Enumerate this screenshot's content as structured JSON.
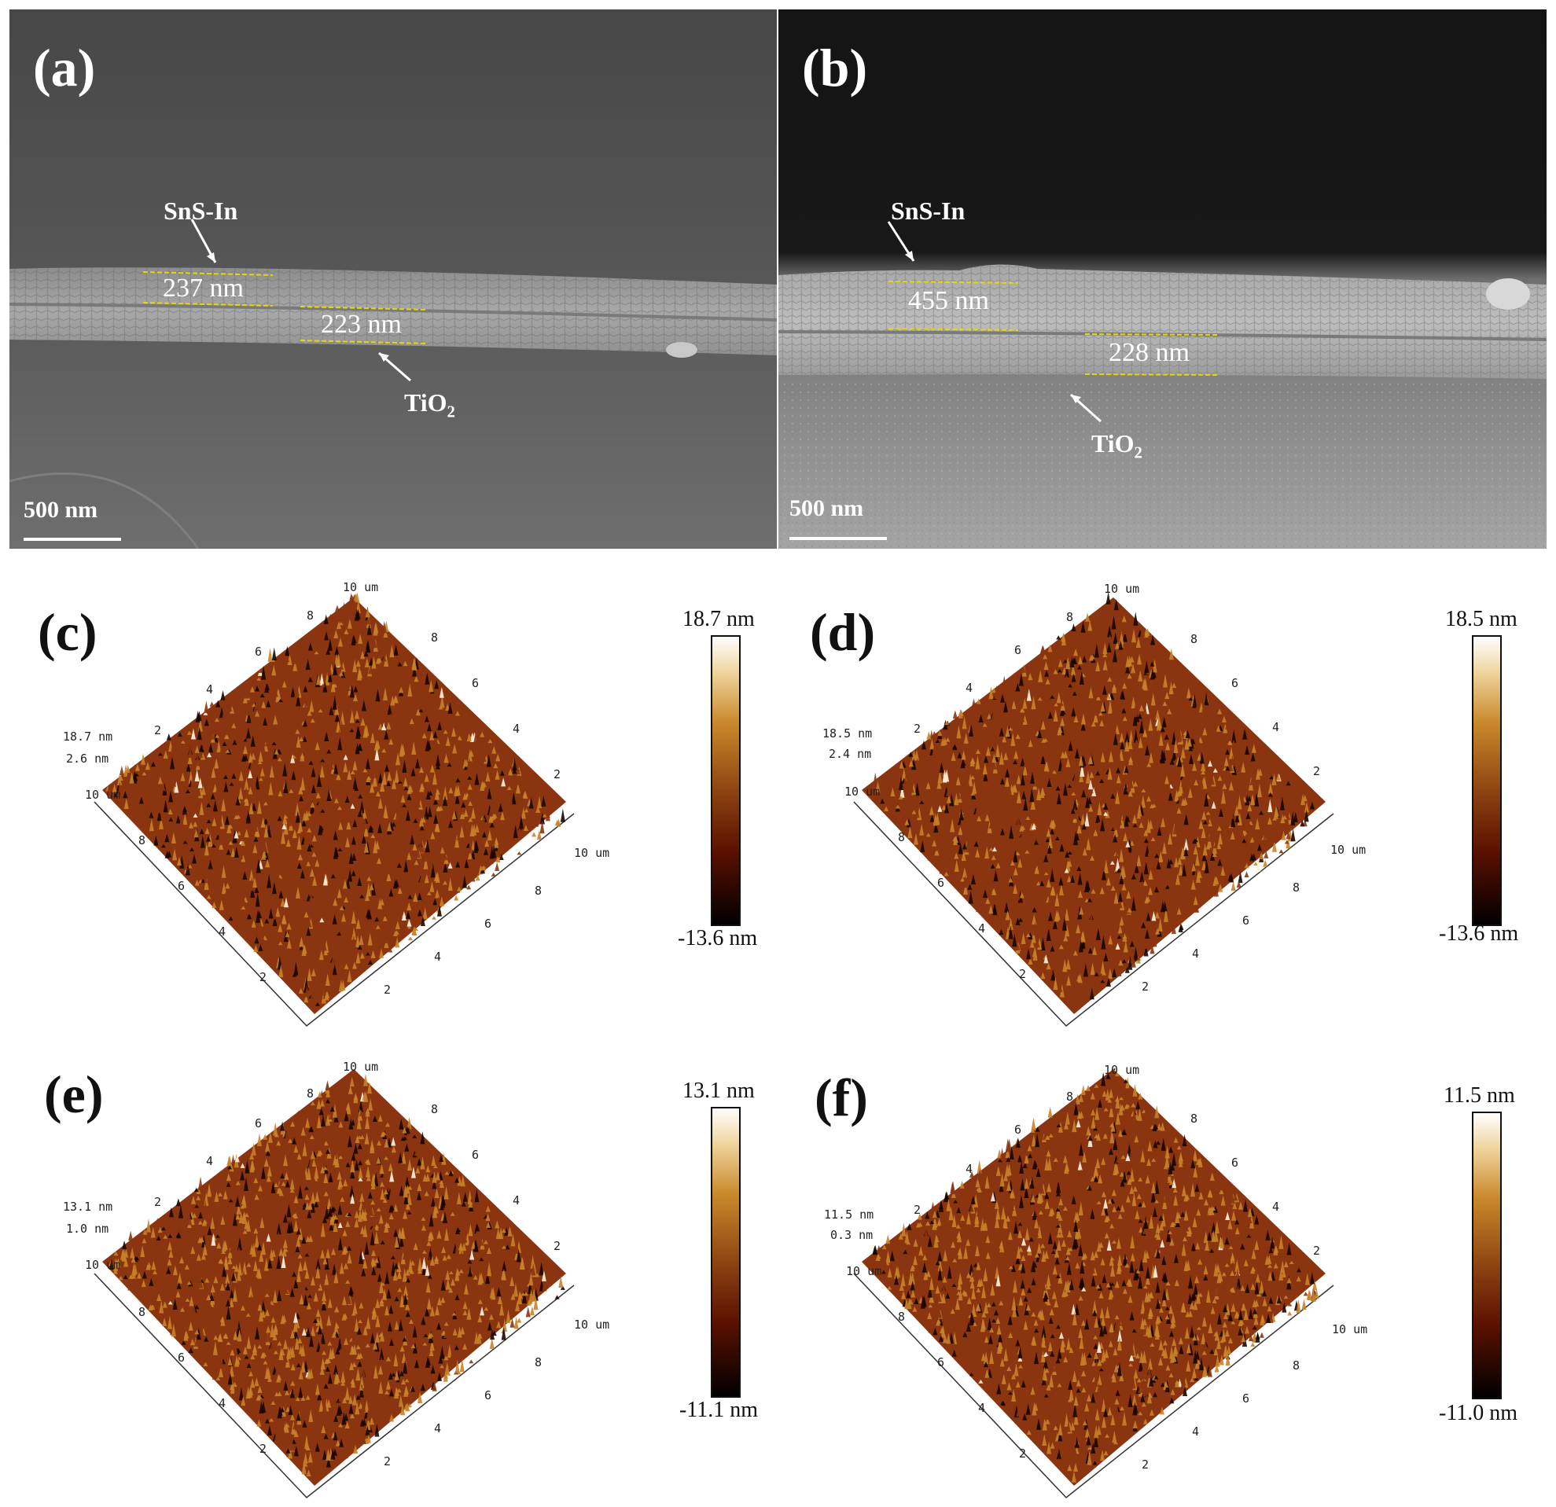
{
  "sem_panels": [
    {
      "label": "(a)",
      "layer_top": "SnS-In",
      "thickness_top": "237 nm",
      "thickness_bottom": "223 nm",
      "layer_bottom_main": "TiO",
      "layer_bottom_sub": "2",
      "scale_text": "500 nm"
    },
    {
      "label": "(b)",
      "layer_top": "SnS-In",
      "thickness_top": "455 nm",
      "thickness_bottom": "228 nm",
      "layer_bottom_main": "TiO",
      "layer_bottom_sub": "2",
      "scale_text": "500 nm"
    }
  ],
  "afm_panels": [
    {
      "label": "(c)",
      "cb_max": "18.7 nm",
      "cb_min": "-13.6 nm",
      "z_top": "18.7 nm",
      "z_mid": "2.6 nm",
      "seed": 11
    },
    {
      "label": "(d)",
      "cb_max": "18.5 nm",
      "cb_min": "-13.6 nm",
      "z_top": "18.5 nm",
      "z_mid": "2.4 nm",
      "seed": 23
    },
    {
      "label": "(e)",
      "cb_max": "13.1 nm",
      "cb_min": "-11.1 nm",
      "z_top": "13.1 nm",
      "z_mid": "1.0 nm",
      "seed": 37
    },
    {
      "label": "(f)",
      "cb_max": "11.5 nm",
      "cb_min": "-11.0 nm",
      "z_top": "11.5 nm",
      "z_mid": "0.3 nm",
      "seed": 53
    }
  ],
  "afm_axes": {
    "corner_label": "10 um",
    "top_label": "10 um",
    "right_label": "10 um",
    "left_ticks": [
      "8",
      "6",
      "4",
      "2"
    ],
    "front_ticks": [
      "2",
      "4",
      "6",
      "8"
    ],
    "back_left_ticks": [
      "2",
      "4",
      "6",
      "8"
    ],
    "back_right_ticks": [
      "8",
      "6",
      "4",
      "2"
    ]
  },
  "colors": {
    "afm_dark": "#1a0500",
    "afm_mid": "#8a3510",
    "afm_light": "#c8822a",
    "afm_highlight": "#fff4e0",
    "sem_guide_line": "#e6d800"
  }
}
